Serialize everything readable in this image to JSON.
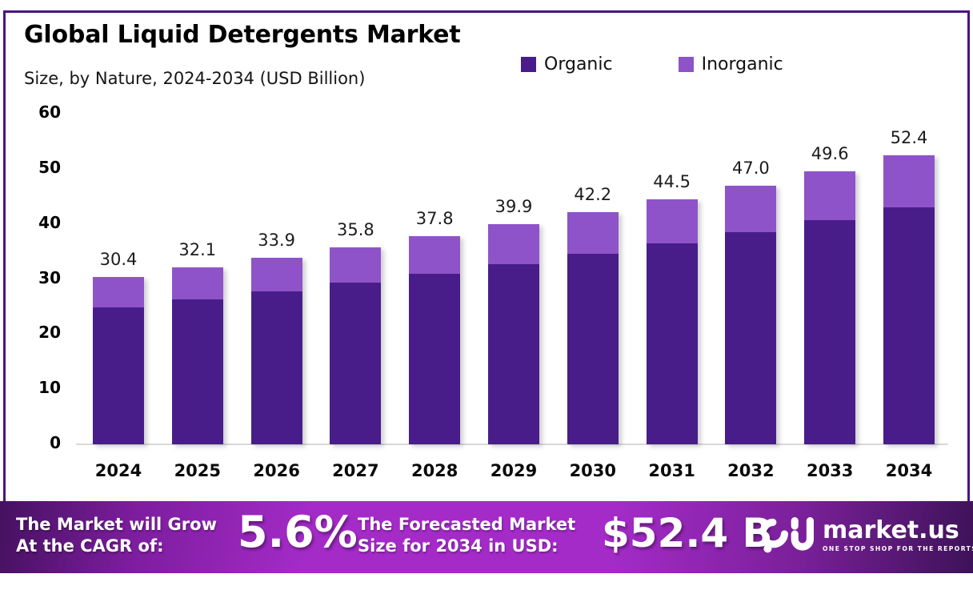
{
  "header": {
    "title": "Global Liquid Detergents Market",
    "subtitle": "Size, by Nature, 2024-2034 (USD Billion)"
  },
  "chart_data": {
    "type": "bar",
    "stacked": true,
    "title": "Global Liquid Detergents Market",
    "subtitle": "Size, by Nature, 2024-2034 (USD Billion)",
    "unit": "USD Billion",
    "categories": [
      "2024",
      "2025",
      "2026",
      "2027",
      "2028",
      "2029",
      "2030",
      "2031",
      "2032",
      "2033",
      "2034"
    ],
    "series": [
      {
        "name": "Organic",
        "color": "#481d8a",
        "values": [
          24.9,
          26.3,
          27.8,
          29.4,
          31.0,
          32.7,
          34.6,
          36.5,
          38.5,
          40.7,
          43.0
        ]
      },
      {
        "name": "Inorganic",
        "color": "#8f53c9",
        "values": [
          5.5,
          5.8,
          6.1,
          6.4,
          6.8,
          7.2,
          7.6,
          8.0,
          8.5,
          8.9,
          9.4
        ]
      }
    ],
    "totals": [
      "30.4",
      "32.1",
      "33.9",
      "35.8",
      "37.8",
      "39.9",
      "42.2",
      "44.5",
      "47.0",
      "49.6",
      "52.4"
    ],
    "y_ticks": [
      0,
      10,
      20,
      30,
      40,
      50,
      60
    ],
    "ylim": [
      0,
      60
    ],
    "xlabel": "",
    "ylabel": "",
    "grid": false,
    "legend_position": "top-right"
  },
  "footer": {
    "cagr_line1": "The Market will Grow",
    "cagr_line2": "At the CAGR of:",
    "cagr_value": "5.6%",
    "forecast_line1": "The Forecasted Market",
    "forecast_line2": "Size for 2034 in USD:",
    "forecast_value": "$52.4 B",
    "brand_name": "market.us",
    "brand_tagline": "ONE STOP SHOP FOR THE REPORTS"
  },
  "colors": {
    "frame_border": "#4a1486",
    "axis_line": "#d9d9d9",
    "banner_edge_left": "#45115f",
    "banner_mid": "#a42bc8",
    "banner_edge_right": "#3d1258",
    "text": "#111111",
    "banner_text": "#ffffff"
  }
}
